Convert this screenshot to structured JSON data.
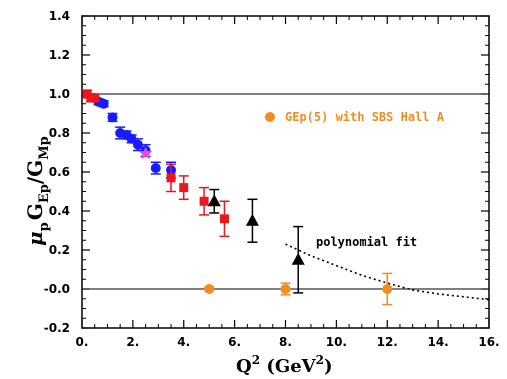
{
  "chart_data": {
    "type": "scatter",
    "title": "",
    "xlabel": {
      "main": "Q",
      "sup": "2",
      "unit_open": " (GeV",
      "unit_sup": "2",
      "unit_close": ")"
    },
    "ylabel": {
      "mu": "μ",
      "p": "p",
      "G1": "G",
      "Ep": "Ep",
      "slash": "/",
      "G2": "G",
      "Mp": "Mp"
    },
    "xlim": [
      0,
      16
    ],
    "ylim": [
      -0.2,
      1.4
    ],
    "x_ticks": [
      0,
      2,
      4,
      6,
      8,
      10,
      12,
      14,
      16
    ],
    "x_tick_labels": [
      "0.",
      "2.",
      "4.",
      "6.",
      "8.",
      "10.",
      "12.",
      "14.",
      "16."
    ],
    "y_ticks": [
      -0.2,
      0.0,
      0.2,
      0.4,
      0.6,
      0.8,
      1.0,
      1.2,
      1.4
    ],
    "y_tick_labels": [
      "-0.2",
      "-0.0",
      "0.2",
      "0.4",
      "0.6",
      "0.8",
      "1.0",
      "1.2",
      "1.4"
    ],
    "grid": false,
    "reference_lines": [
      1.0,
      0.0
    ],
    "legend": {
      "label": "GEp(5) with SBS Hall A",
      "color": "#f28c1e",
      "placement": "right"
    },
    "annotations": [
      {
        "text": "polynomial fit",
        "near_x": 11.0,
        "near_y": 0.19
      }
    ],
    "colors": {
      "blue": "#1a1aff",
      "red": "#e8191c",
      "black": "#000000",
      "orange": "#f28c1e",
      "magenta": "#e94bd6"
    },
    "series": [
      {
        "marker": "circle",
        "color": "#1a1aff",
        "x": [
          0.45,
          0.65,
          0.85,
          1.2,
          1.5,
          1.75,
          1.95,
          2.2,
          2.5,
          2.9,
          3.5
        ],
        "y": [
          0.98,
          0.96,
          0.95,
          0.88,
          0.8,
          0.79,
          0.77,
          0.74,
          0.71,
          0.62,
          0.61
        ],
        "err": [
          0.015,
          0.015,
          0.015,
          0.02,
          0.03,
          0.02,
          0.02,
          0.03,
          0.03,
          0.03,
          0.04
        ]
      },
      {
        "marker": "square",
        "color": "#e8191c",
        "x": [
          0.2,
          0.35,
          0.5,
          3.5,
          4.0,
          4.8,
          5.6
        ],
        "y": [
          1.0,
          0.98,
          0.98,
          0.57,
          0.52,
          0.45,
          0.36
        ],
        "err": [
          0.02,
          0.02,
          0.02,
          0.07,
          0.06,
          0.07,
          0.09
        ]
      },
      {
        "marker": "triangle",
        "color": "#000000",
        "x": [
          5.2,
          6.7,
          8.5
        ],
        "y": [
          0.45,
          0.35,
          0.15
        ],
        "err": [
          0.06,
          0.11,
          0.17
        ]
      },
      {
        "marker": "star",
        "color": "#e94bd6",
        "x": [
          2.5
        ],
        "y": [
          0.695
        ],
        "err": [
          0
        ]
      },
      {
        "name": "GEp(5) with SBS Hall A",
        "marker": "circle",
        "color": "#f28c1e",
        "x": [
          5.0,
          8.0,
          12.0
        ],
        "y": [
          0.0,
          0.0,
          0.0
        ],
        "err": [
          0.01,
          0.03,
          0.08
        ]
      }
    ],
    "fit_curve": {
      "style": "dotted",
      "color": "#000000",
      "x": [
        8.0,
        9.0,
        10.0,
        11.0,
        12.0,
        13.0,
        14.0,
        15.0,
        16.0
      ],
      "y": [
        0.23,
        0.17,
        0.12,
        0.07,
        0.03,
        -0.005,
        -0.025,
        -0.04,
        -0.055
      ]
    }
  }
}
